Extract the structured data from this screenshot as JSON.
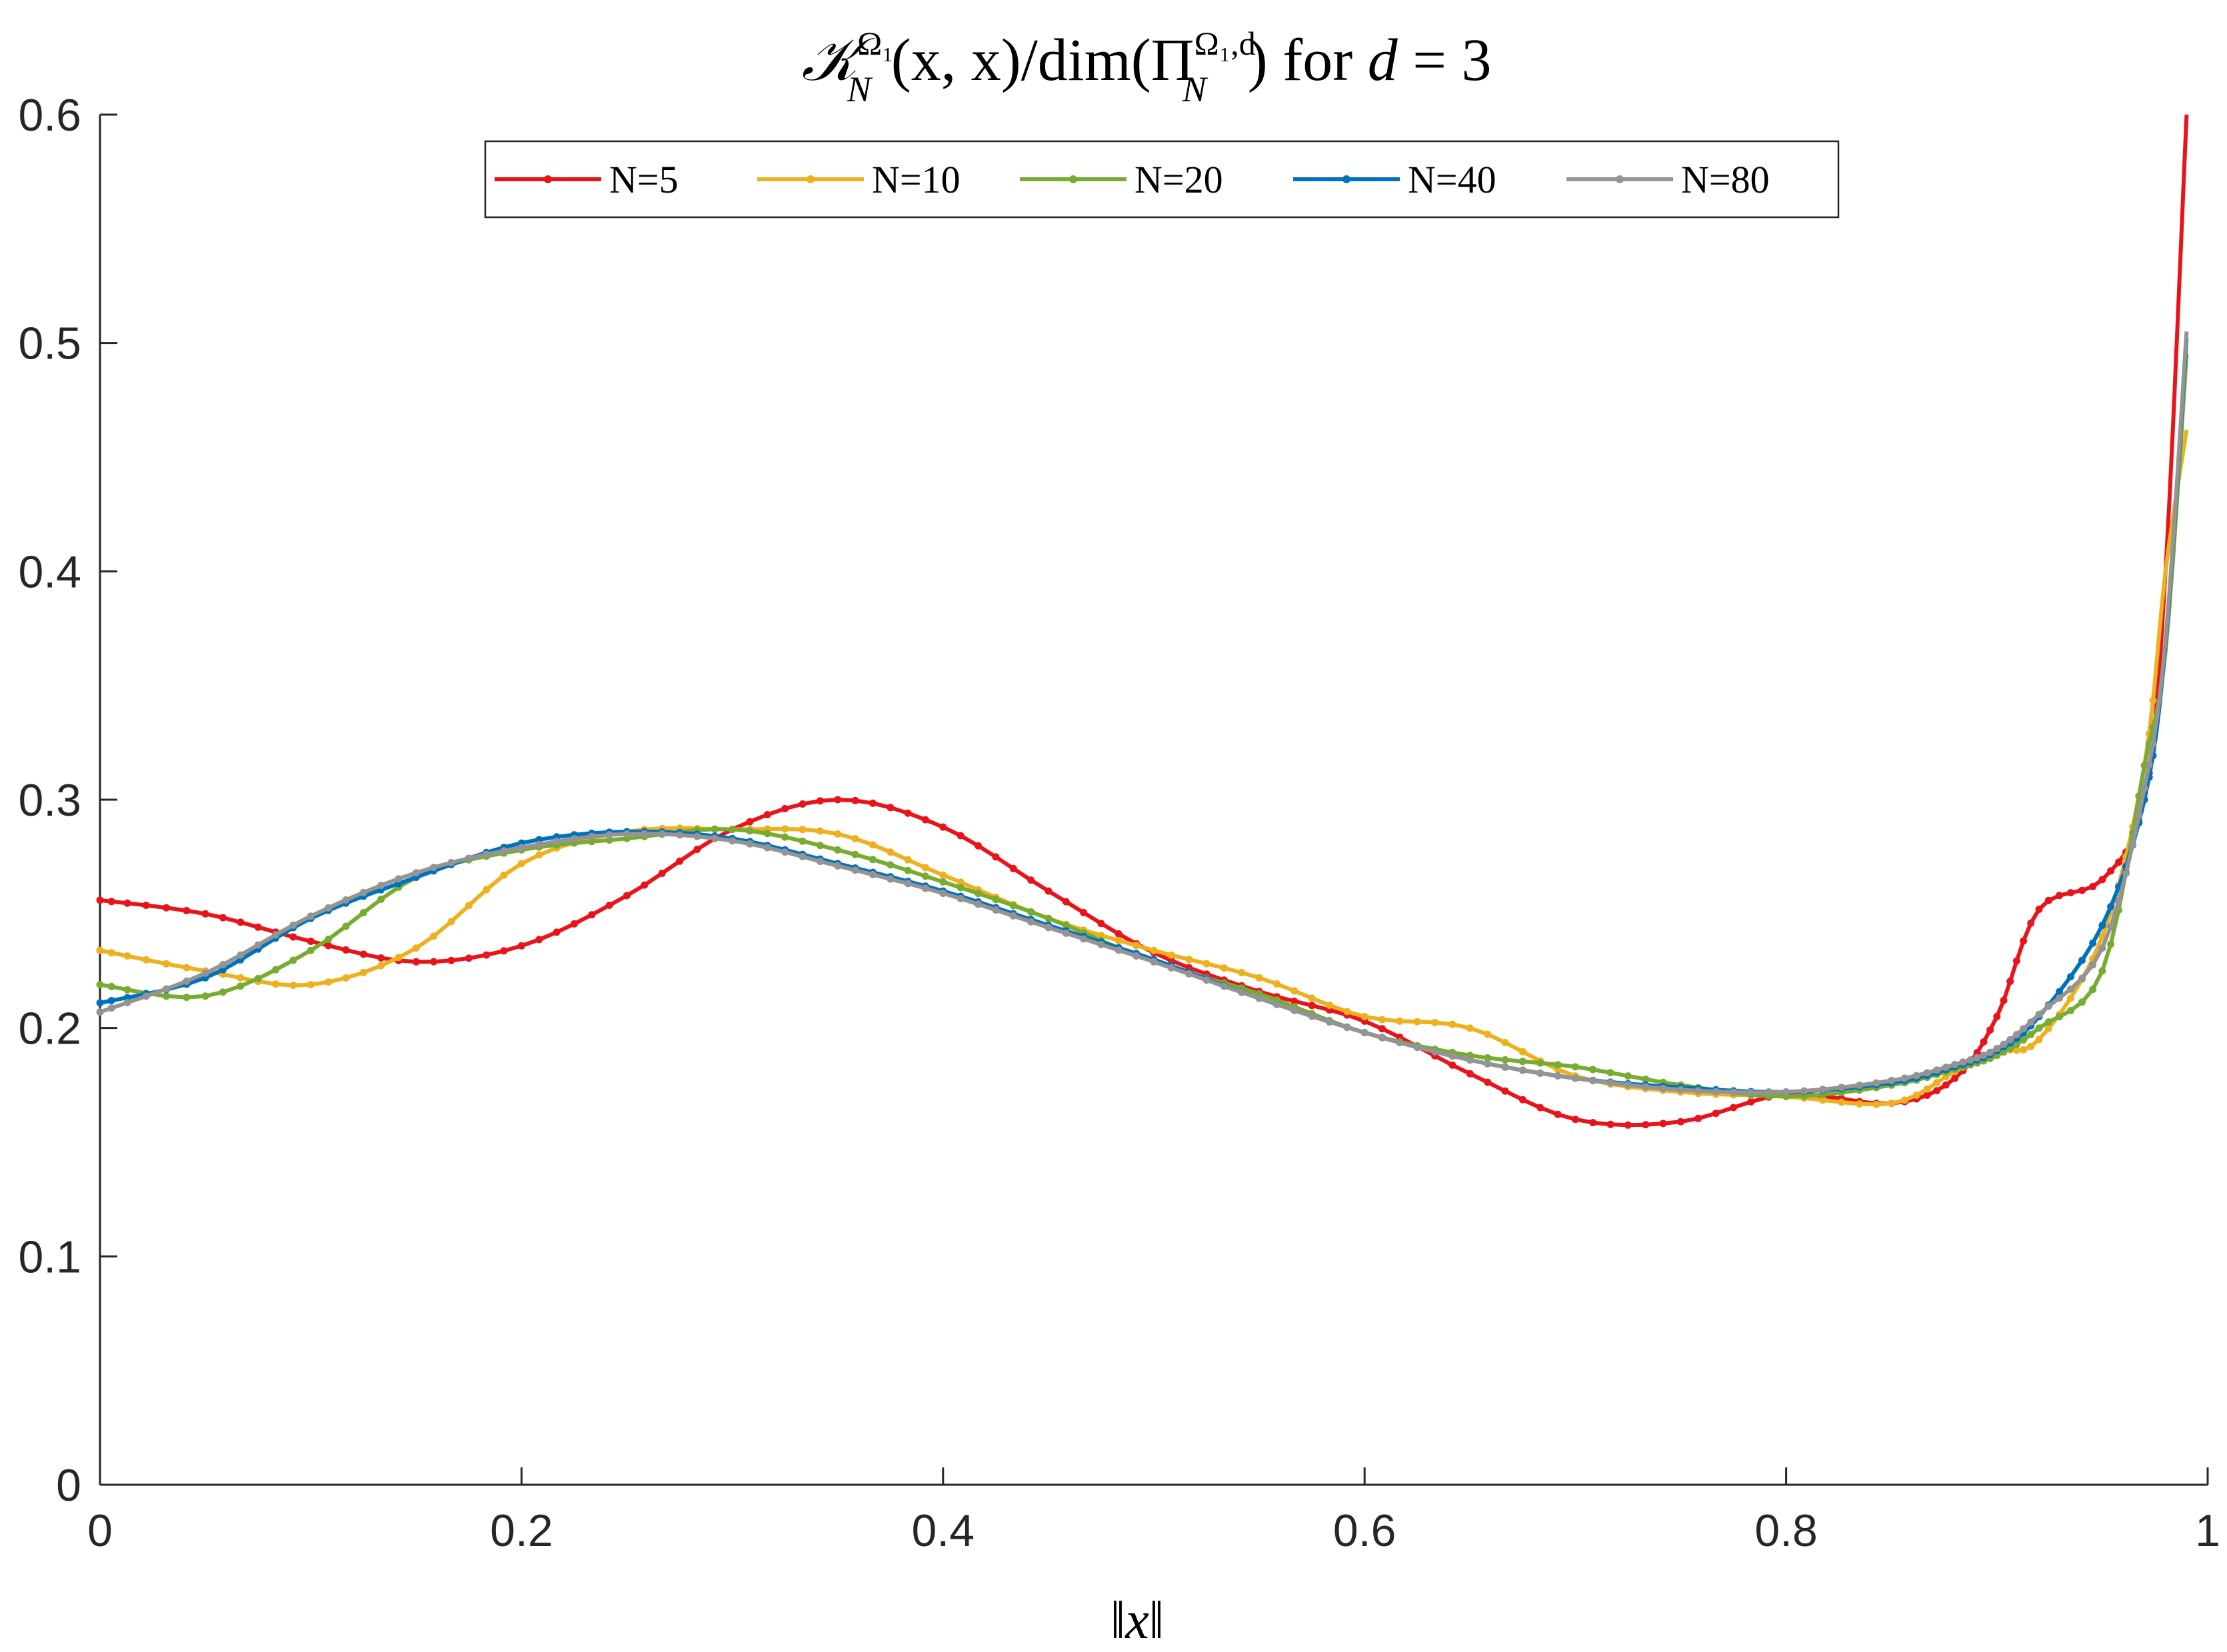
{
  "chart_data": {
    "type": "line",
    "title": "𝒦_N^{Ω₁}(x, x) / dim(Π_N^{Ω₁,d}) for d = 3",
    "title_parts": {
      "k": "𝒦",
      "k_sup": "Ω₁",
      "k_sub": "N",
      "args": "(x, x)/dim(Π",
      "pi_sup": "Ω₁,d",
      "pi_sub": "N",
      "tail": ") for ",
      "d": "d",
      "eq": " = 3"
    },
    "xlabel": "‖x‖",
    "ylabel": "",
    "xlim": [
      0,
      1
    ],
    "ylim": [
      0,
      0.6
    ],
    "xticks": [
      0,
      0.2,
      0.4,
      0.6,
      0.8,
      1
    ],
    "xtick_labels": [
      "0",
      "0.2",
      "0.4",
      "0.6",
      "0.8",
      "1"
    ],
    "yticks": [
      0,
      0.1,
      0.2,
      0.3,
      0.4,
      0.5,
      0.6
    ],
    "ytick_labels": [
      "0",
      "0.1",
      "0.2",
      "0.3",
      "0.4",
      "0.5",
      "0.6"
    ],
    "grid": false,
    "legend_placement": "top-center",
    "series": [
      {
        "name": "N=5",
        "color": "#e8141c",
        "x": [
          0,
          0.05,
          0.1,
          0.15,
          0.2,
          0.25,
          0.3,
          0.35,
          0.4,
          0.45,
          0.5,
          0.55,
          0.6,
          0.65,
          0.7,
          0.75,
          0.8,
          0.85,
          0.88,
          0.9,
          0.92,
          0.95,
          0.97,
          0.98,
          0.99
        ],
        "y": [
          0.256,
          0.25,
          0.238,
          0.229,
          0.236,
          0.258,
          0.287,
          0.3,
          0.288,
          0.26,
          0.233,
          0.216,
          0.203,
          0.18,
          0.16,
          0.159,
          0.171,
          0.167,
          0.178,
          0.205,
          0.252,
          0.265,
          0.3,
          0.4,
          0.6
        ]
      },
      {
        "name": "N=10",
        "color": "#edb120",
        "x": [
          0,
          0.05,
          0.1,
          0.15,
          0.2,
          0.25,
          0.3,
          0.35,
          0.4,
          0.45,
          0.5,
          0.55,
          0.6,
          0.65,
          0.7,
          0.75,
          0.8,
          0.85,
          0.88,
          0.9,
          0.92,
          0.95,
          0.97,
          0.98,
          0.99
        ],
        "y": [
          0.234,
          0.225,
          0.219,
          0.235,
          0.272,
          0.286,
          0.287,
          0.285,
          0.267,
          0.248,
          0.234,
          0.222,
          0.205,
          0.2,
          0.179,
          0.172,
          0.17,
          0.167,
          0.181,
          0.19,
          0.195,
          0.24,
          0.315,
          0.4,
          0.462
        ]
      },
      {
        "name": "N=20",
        "color": "#77ac30",
        "x": [
          0,
          0.05,
          0.1,
          0.15,
          0.2,
          0.25,
          0.3,
          0.35,
          0.4,
          0.45,
          0.5,
          0.55,
          0.6,
          0.65,
          0.7,
          0.75,
          0.8,
          0.85,
          0.88,
          0.9,
          0.92,
          0.95,
          0.97,
          0.98,
          0.99
        ],
        "y": [
          0.219,
          0.214,
          0.234,
          0.266,
          0.278,
          0.283,
          0.287,
          0.278,
          0.264,
          0.248,
          0.229,
          0.215,
          0.198,
          0.188,
          0.183,
          0.175,
          0.17,
          0.175,
          0.182,
          0.188,
          0.2,
          0.225,
          0.315,
          0.365,
          0.495
        ]
      },
      {
        "name": "N=40",
        "color": "#0072bd",
        "x": [
          0,
          0.05,
          0.1,
          0.15,
          0.2,
          0.25,
          0.3,
          0.35,
          0.4,
          0.45,
          0.5,
          0.55,
          0.6,
          0.65,
          0.7,
          0.75,
          0.8,
          0.85,
          0.88,
          0.9,
          0.92,
          0.95,
          0.97,
          0.98,
          0.99
        ],
        "y": [
          0.211,
          0.222,
          0.248,
          0.266,
          0.281,
          0.286,
          0.283,
          0.272,
          0.26,
          0.245,
          0.23,
          0.213,
          0.198,
          0.186,
          0.178,
          0.174,
          0.172,
          0.176,
          0.183,
          0.19,
          0.205,
          0.245,
          0.3,
          0.368,
          0.502
        ]
      },
      {
        "name": "N=80",
        "color": "#949494",
        "x": [
          0,
          0.05,
          0.1,
          0.15,
          0.2,
          0.25,
          0.3,
          0.35,
          0.4,
          0.45,
          0.5,
          0.55,
          0.6,
          0.65,
          0.7,
          0.75,
          0.8,
          0.85,
          0.88,
          0.9,
          0.92,
          0.95,
          0.97,
          0.98,
          0.99
        ],
        "y": [
          0.207,
          0.224,
          0.249,
          0.268,
          0.279,
          0.285,
          0.282,
          0.271,
          0.259,
          0.244,
          0.229,
          0.213,
          0.198,
          0.186,
          0.178,
          0.173,
          0.172,
          0.177,
          0.184,
          0.191,
          0.206,
          0.235,
          0.305,
          0.37,
          0.505
        ]
      }
    ]
  }
}
